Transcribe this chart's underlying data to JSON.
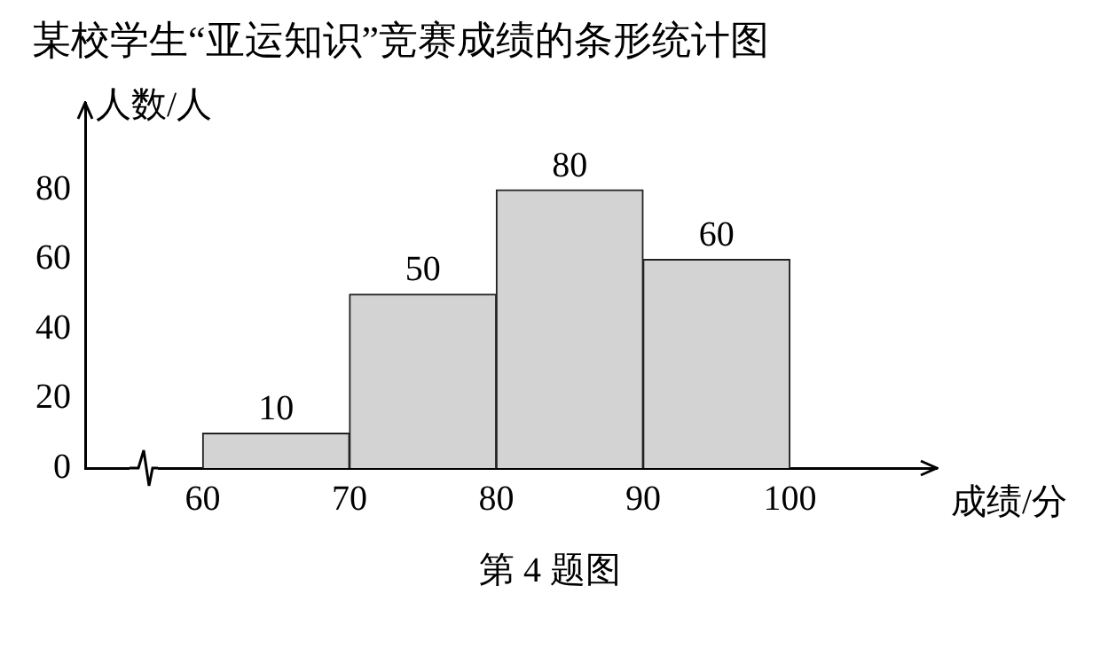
{
  "chart_data": {
    "type": "histogram",
    "title": "某校学生“亚运知识”竞赛成绩的条形统计图",
    "xlabel": "成绩/分",
    "ylabel": "人数/人",
    "bins": [
      60,
      70,
      80,
      90,
      100
    ],
    "values": [
      10,
      50,
      80,
      60
    ],
    "color": "#d3d3d3",
    "xlim": [
      52,
      110
    ],
    "xticks": [
      60,
      70,
      80,
      90,
      100
    ],
    "ylim": [
      0,
      105
    ],
    "yticks": [
      0,
      20,
      40,
      60,
      80
    ],
    "data_labels": true,
    "grid": false,
    "legend": false,
    "annotations": [
      "第 4 题图"
    ]
  }
}
